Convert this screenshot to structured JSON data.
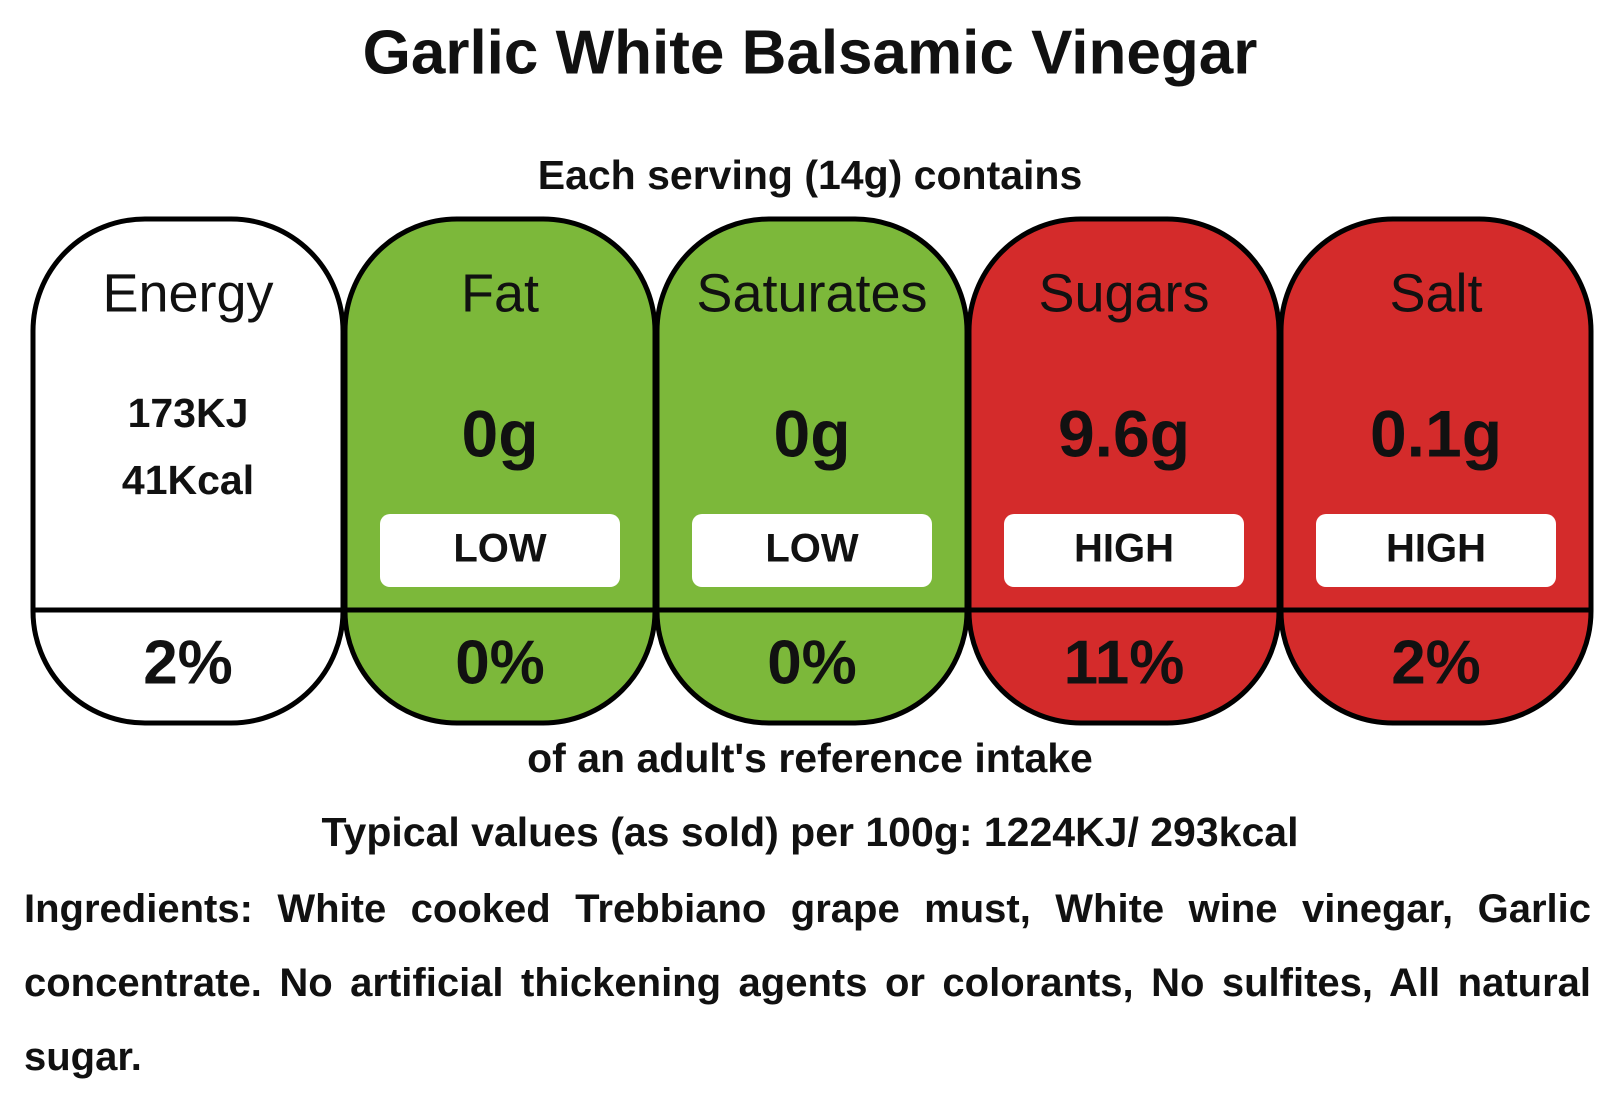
{
  "title": "Garlic White Balsamic Vinegar",
  "serving_text": "Each serving (14g) contains",
  "columns": [
    {
      "name": "Energy",
      "amounts": [
        "173KJ",
        "41Kcal"
      ],
      "percent": "2%",
      "color": "#ffffff"
    },
    {
      "name": "Fat",
      "amounts": [
        "0g"
      ],
      "level": "LOW",
      "percent": "0%",
      "color": "#7cb83a"
    },
    {
      "name": "Saturates",
      "amounts": [
        "0g"
      ],
      "level": "LOW",
      "percent": "0%",
      "color": "#7cb83a"
    },
    {
      "name": "Sugars",
      "amounts": [
        "9.6g"
      ],
      "level": "HIGH",
      "percent": "11%",
      "color": "#d42b2b"
    },
    {
      "name": "Salt",
      "amounts": [
        "0.1g"
      ],
      "level": "HIGH",
      "percent": "2%",
      "color": "#d42b2b"
    }
  ],
  "reference_text": "of an adult's reference intake",
  "typical_values": "Typical values (as sold) per 100g: 1224KJ/ 293kcal",
  "ingredients": "Ingredients: White cooked Trebbiano grape must, White wine vinegar, Garlic concentrate. No artificial thickening agents or colorants, No sulfites, All natural sugar."
}
